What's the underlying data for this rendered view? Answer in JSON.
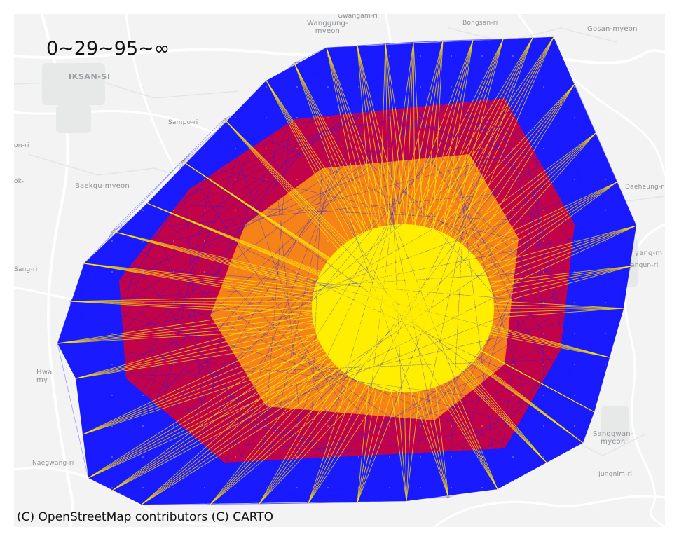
{
  "map": {
    "title": "0~29~95~∞",
    "attribution": "(C) OpenStreetMap contributors (C) CARTO",
    "place_labels": {
      "wanggung": "Wanggung-\nmyeon",
      "gwangam": "Gwangam-ri",
      "bongsan": "Bongsan-ri",
      "gosan": "Gosan-myeon",
      "iksan": "IKSAN-SI",
      "sampo": "Sampo-ri",
      "on_ri": "on-ri",
      "ok": "ok-",
      "baekgu": "Baekgu-myeon",
      "daeheung": "Daeheung-r",
      "yang": "yang-m",
      "angun": "angun-ri",
      "sang": "Sang-ri",
      "hwa": "Hwa\nmy",
      "sanggwan": "Sanggwan-\nmyeon",
      "naegwang": "Naegwang-ri",
      "jungnim": "Jungnim-ri"
    },
    "colors": {
      "background": "#f2f3f2",
      "low_band": "#1a1aff",
      "mid_band": "#e0002a",
      "high_band": "#ffee00"
    },
    "legend_bands": [
      "0~29",
      "29~95",
      "95~∞"
    ]
  }
}
